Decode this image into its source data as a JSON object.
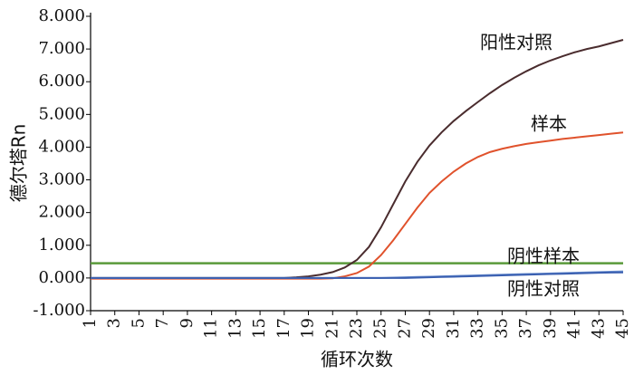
{
  "chart_data": {
    "type": "line",
    "y_label": "德尔塔Rn",
    "x_label": "循环次数",
    "x": [
      1,
      2,
      3,
      4,
      5,
      6,
      7,
      8,
      9,
      10,
      11,
      12,
      13,
      14,
      15,
      16,
      17,
      18,
      19,
      20,
      21,
      22,
      23,
      24,
      25,
      26,
      27,
      28,
      29,
      30,
      31,
      32,
      33,
      34,
      35,
      36,
      37,
      38,
      39,
      40,
      41,
      42,
      43,
      44,
      45
    ],
    "series": [
      {
        "name": "阳性对照",
        "color": "#4a2c2e",
        "values": [
          0,
          0,
          0,
          0,
          0,
          0,
          0,
          0,
          0,
          0,
          0,
          0,
          0,
          0,
          0,
          0,
          0,
          0.02,
          0.05,
          0.1,
          0.18,
          0.32,
          0.55,
          0.95,
          1.55,
          2.25,
          2.95,
          3.55,
          4.05,
          4.45,
          4.8,
          5.1,
          5.38,
          5.65,
          5.9,
          6.12,
          6.32,
          6.5,
          6.65,
          6.78,
          6.9,
          7.0,
          7.08,
          7.18,
          7.28
        ]
      },
      {
        "name": "样本",
        "color": "#e0522c",
        "values": [
          -0.02,
          -0.02,
          -0.02,
          -0.02,
          -0.02,
          -0.02,
          -0.02,
          -0.02,
          -0.02,
          -0.02,
          -0.02,
          -0.02,
          -0.02,
          -0.02,
          -0.02,
          -0.02,
          -0.02,
          -0.02,
          -0.02,
          -0.02,
          -0.01,
          0.05,
          0.15,
          0.35,
          0.7,
          1.15,
          1.65,
          2.15,
          2.6,
          2.95,
          3.25,
          3.5,
          3.7,
          3.85,
          3.95,
          4.03,
          4.1,
          4.15,
          4.2,
          4.25,
          4.29,
          4.33,
          4.37,
          4.41,
          4.45
        ]
      },
      {
        "name": "阴性样本",
        "color": "#6a8fd0",
        "values": [
          0,
          0,
          0,
          0,
          0,
          0,
          0,
          0,
          0,
          0,
          0,
          0,
          0,
          0,
          0,
          0,
          0,
          0,
          0,
          0,
          0,
          0,
          0,
          0,
          0,
          0.01,
          0.02,
          0.03,
          0.04,
          0.05,
          0.06,
          0.07,
          0.08,
          0.09,
          0.1,
          0.11,
          0.12,
          0.13,
          0.14,
          0.15,
          0.16,
          0.17,
          0.18,
          0.19,
          0.2
        ]
      },
      {
        "name": "阴性对照",
        "color": "#3a5fb0",
        "values": [
          0,
          0,
          0,
          0,
          0,
          0,
          0,
          0,
          0,
          0,
          0,
          0,
          0,
          0,
          0,
          0,
          0,
          0,
          0,
          0,
          0,
          0,
          0,
          0,
          0,
          0,
          0,
          0.01,
          0.02,
          0.03,
          0.04,
          0.05,
          0.06,
          0.07,
          0.08,
          0.09,
          0.1,
          0.11,
          0.12,
          0.13,
          0.14,
          0.15,
          0.16,
          0.165,
          0.17
        ]
      }
    ],
    "threshold": {
      "value": 0.45,
      "color": "#5a9a3a"
    },
    "xlim": [
      1,
      45
    ],
    "xticks": [
      1,
      3,
      5,
      7,
      9,
      11,
      13,
      15,
      17,
      19,
      21,
      23,
      25,
      27,
      29,
      31,
      33,
      35,
      37,
      39,
      41,
      43,
      45
    ],
    "ylim": [
      -1,
      8
    ],
    "yticks": [
      {
        "value": -1,
        "label": "-1.000"
      },
      {
        "value": 0,
        "label": "0.000"
      },
      {
        "value": 1,
        "label": "1.000"
      },
      {
        "value": 2,
        "label": "2.000"
      },
      {
        "value": 3,
        "label": "3.000"
      },
      {
        "value": 4,
        "label": "4.000"
      },
      {
        "value": 5,
        "label": "5.000"
      },
      {
        "value": 6,
        "label": "6.000"
      },
      {
        "value": 7,
        "label": "7.000"
      },
      {
        "value": 8,
        "label": "8.000"
      }
    ]
  }
}
